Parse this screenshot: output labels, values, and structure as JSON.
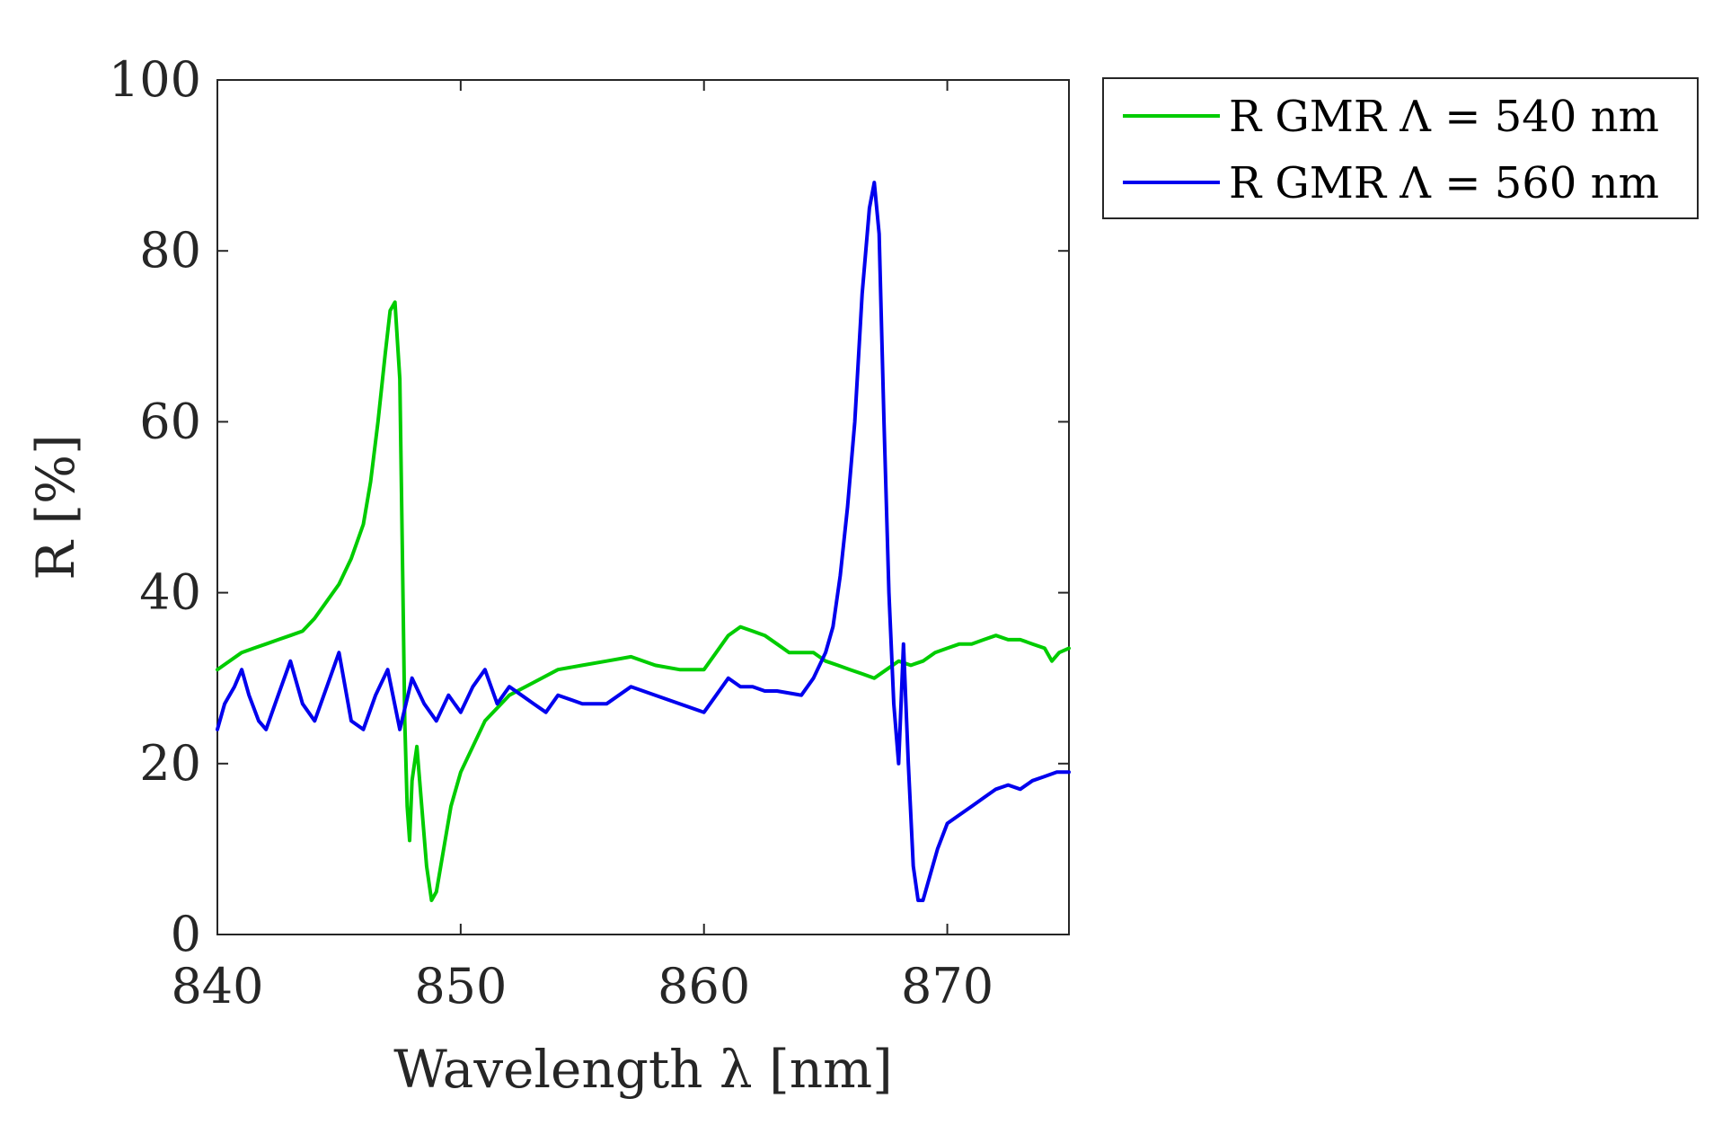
{
  "chart_data": {
    "type": "line",
    "title": "",
    "xlabel": "Wavelength λ [nm]",
    "ylabel": "R [%]",
    "xlim": [
      840,
      875
    ],
    "ylim": [
      0,
      100
    ],
    "xticks": [
      840,
      850,
      860,
      870
    ],
    "yticks": [
      0,
      20,
      40,
      60,
      80,
      100
    ],
    "grid": false,
    "legend_position": "outside-top-right",
    "series": [
      {
        "name": "R GMR Λ = 540 nm",
        "color": "#00cc00",
        "x": [
          840.0,
          840.5,
          841.0,
          841.5,
          842.0,
          842.5,
          843.0,
          843.5,
          844.0,
          844.5,
          845.0,
          845.5,
          846.0,
          846.3,
          846.6,
          846.9,
          847.1,
          847.3,
          847.5,
          847.6,
          847.7,
          847.8,
          847.9,
          848.0,
          848.2,
          848.4,
          848.6,
          848.8,
          849.0,
          849.3,
          849.6,
          850.0,
          850.5,
          851.0,
          852.0,
          853.0,
          854.0,
          855.0,
          856.0,
          857.0,
          858.0,
          859.0,
          860.0,
          860.5,
          861.0,
          861.5,
          862.0,
          862.5,
          863.0,
          863.5,
          864.0,
          864.5,
          865.0,
          865.5,
          866.0,
          866.5,
          867.0,
          867.5,
          868.0,
          868.5,
          869.0,
          869.5,
          870.0,
          870.5,
          871.0,
          871.5,
          872.0,
          872.5,
          873.0,
          873.5,
          874.0,
          874.3,
          874.6,
          875.0
        ],
        "values": [
          31,
          32,
          33,
          33.5,
          34,
          34.5,
          35,
          35.5,
          37,
          39,
          41,
          44,
          48,
          53,
          60,
          68,
          73,
          74,
          65,
          45,
          25,
          15,
          11,
          18,
          22,
          15,
          8,
          4,
          5,
          10,
          15,
          19,
          22,
          25,
          28,
          29.5,
          31,
          31.5,
          32,
          32.5,
          31.5,
          31,
          31,
          33,
          35,
          36,
          35.5,
          35,
          34,
          33,
          33,
          33,
          32,
          31.5,
          31,
          30.5,
          30,
          31,
          32,
          31.5,
          32,
          33,
          33.5,
          34,
          34,
          34.5,
          35,
          34.5,
          34.5,
          34,
          33.5,
          32,
          33,
          33.5
        ]
      },
      {
        "name": "R GMR Λ = 560 nm",
        "color": "#0000ee",
        "x": [
          840.0,
          840.3,
          840.7,
          841.0,
          841.3,
          841.7,
          842.0,
          842.5,
          843.0,
          843.5,
          844.0,
          844.5,
          845.0,
          845.5,
          846.0,
          846.5,
          847.0,
          847.5,
          848.0,
          848.5,
          849.0,
          849.5,
          850.0,
          850.5,
          851.0,
          851.5,
          852.0,
          852.5,
          853.0,
          853.5,
          854.0,
          855.0,
          856.0,
          857.0,
          858.0,
          859.0,
          860.0,
          860.5,
          861.0,
          861.5,
          862.0,
          862.5,
          863.0,
          864.0,
          864.5,
          865.0,
          865.3,
          865.6,
          865.9,
          866.2,
          866.5,
          866.8,
          867.0,
          867.2,
          867.4,
          867.6,
          867.8,
          868.0,
          868.2,
          868.4,
          868.6,
          868.8,
          869.0,
          869.3,
          869.6,
          870.0,
          870.5,
          871.0,
          871.5,
          872.0,
          872.5,
          873.0,
          873.5,
          874.0,
          874.5,
          875.0
        ],
        "values": [
          24,
          27,
          29,
          31,
          28,
          25,
          24,
          28,
          32,
          27,
          25,
          29,
          33,
          25,
          24,
          28,
          31,
          24,
          30,
          27,
          25,
          28,
          26,
          29,
          31,
          27,
          29,
          28,
          27,
          26,
          28,
          27,
          27,
          29,
          28,
          27,
          26,
          28,
          30,
          29,
          29,
          28.5,
          28.5,
          28,
          30,
          33,
          36,
          42,
          50,
          60,
          75,
          85,
          88,
          82,
          60,
          40,
          27,
          20,
          34,
          20,
          8,
          4,
          4,
          7,
          10,
          13,
          14,
          15,
          16,
          17,
          17.5,
          17,
          18,
          18.5,
          19,
          19
        ]
      }
    ]
  }
}
